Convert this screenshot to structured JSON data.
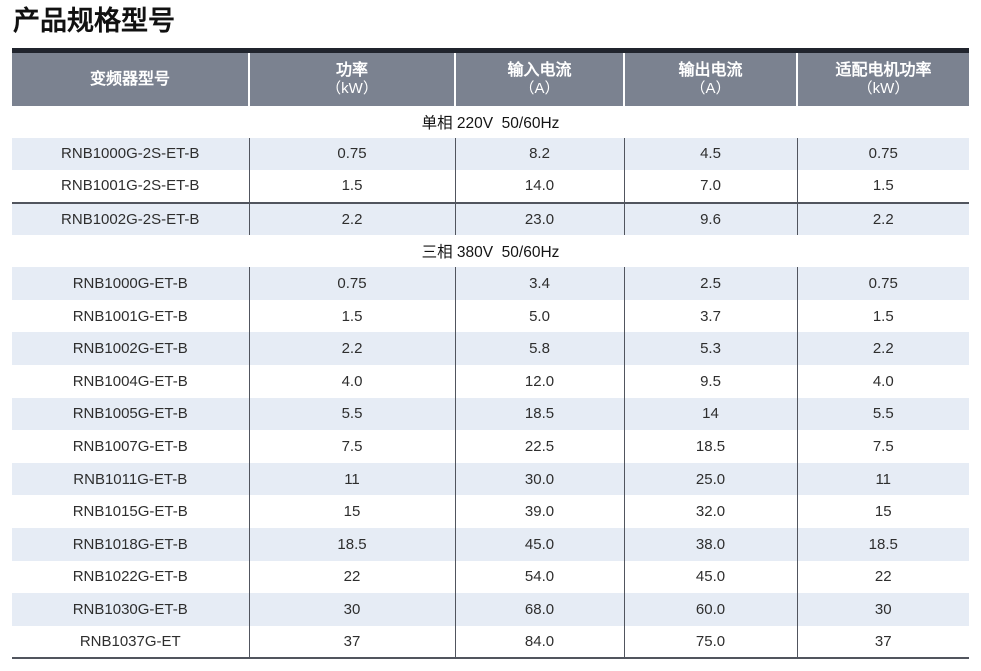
{
  "page": {
    "title": "产品规格型号"
  },
  "theme": {
    "header_bg": "#7b8290",
    "header_text": "#ffffff",
    "stripe_bg": "#e6ecf5",
    "rule_color": "#51555e",
    "header_top_border": "#20242d",
    "body_text": "#2e2e2e"
  },
  "table": {
    "columns": [
      {
        "line1": "变频器型号",
        "line2": ""
      },
      {
        "line1": "功率",
        "line2": "（kW）"
      },
      {
        "line1": "输入电流",
        "line2": "（A）"
      },
      {
        "line1": "输出电流",
        "line2": "（A）"
      },
      {
        "line1": "适配电机功率",
        "line2": "（kW）"
      }
    ],
    "sections": [
      {
        "header": "单相 220V  50/60Hz",
        "rows": [
          {
            "model": "RNB1000G-2S-ET-B",
            "power_kw": "0.75",
            "input_a": "8.2",
            "output_a": "4.5",
            "motor_kw": "0.75"
          },
          {
            "model": "RNB1001G-2S-ET-B",
            "power_kw": "1.5",
            "input_a": "14.0",
            "output_a": "7.0",
            "motor_kw": "1.5"
          },
          {
            "model": "RNB1002G-2S-ET-B",
            "power_kw": "2.2",
            "input_a": "23.0",
            "output_a": "9.6",
            "motor_kw": "2.2",
            "rule_above": true
          }
        ]
      },
      {
        "header": "三相 380V  50/60Hz",
        "rows": [
          {
            "model": "RNB1000G-ET-B",
            "power_kw": "0.75",
            "input_a": "3.4",
            "output_a": "2.5",
            "motor_kw": "0.75"
          },
          {
            "model": "RNB1001G-ET-B",
            "power_kw": "1.5",
            "input_a": "5.0",
            "output_a": "3.7",
            "motor_kw": "1.5"
          },
          {
            "model": "RNB1002G-ET-B",
            "power_kw": "2.2",
            "input_a": "5.8",
            "output_a": "5.3",
            "motor_kw": "2.2"
          },
          {
            "model": "RNB1004G-ET-B",
            "power_kw": "4.0",
            "input_a": "12.0",
            "output_a": "9.5",
            "motor_kw": "4.0"
          },
          {
            "model": "RNB1005G-ET-B",
            "power_kw": "5.5",
            "input_a": "18.5",
            "output_a": "14",
            "motor_kw": "5.5"
          },
          {
            "model": "RNB1007G-ET-B",
            "power_kw": "7.5",
            "input_a": "22.5",
            "output_a": "18.5",
            "motor_kw": "7.5"
          },
          {
            "model": "RNB1011G-ET-B",
            "power_kw": "11",
            "input_a": "30.0",
            "output_a": "25.0",
            "motor_kw": "11"
          },
          {
            "model": "RNB1015G-ET-B",
            "power_kw": "15",
            "input_a": "39.0",
            "output_a": "32.0",
            "motor_kw": "15"
          },
          {
            "model": "RNB1018G-ET-B",
            "power_kw": "18.5",
            "input_a": "45.0",
            "output_a": "38.0",
            "motor_kw": "18.5"
          },
          {
            "model": "RNB1022G-ET-B",
            "power_kw": "22",
            "input_a": "54.0",
            "output_a": "45.0",
            "motor_kw": "22"
          },
          {
            "model": "RNB1030G-ET-B",
            "power_kw": "30",
            "input_a": "68.0",
            "output_a": "60.0",
            "motor_kw": "30"
          },
          {
            "model": "RNB1037G-ET",
            "power_kw": "37",
            "input_a": "84.0",
            "output_a": "75.0",
            "motor_kw": "37"
          }
        ]
      }
    ]
  }
}
